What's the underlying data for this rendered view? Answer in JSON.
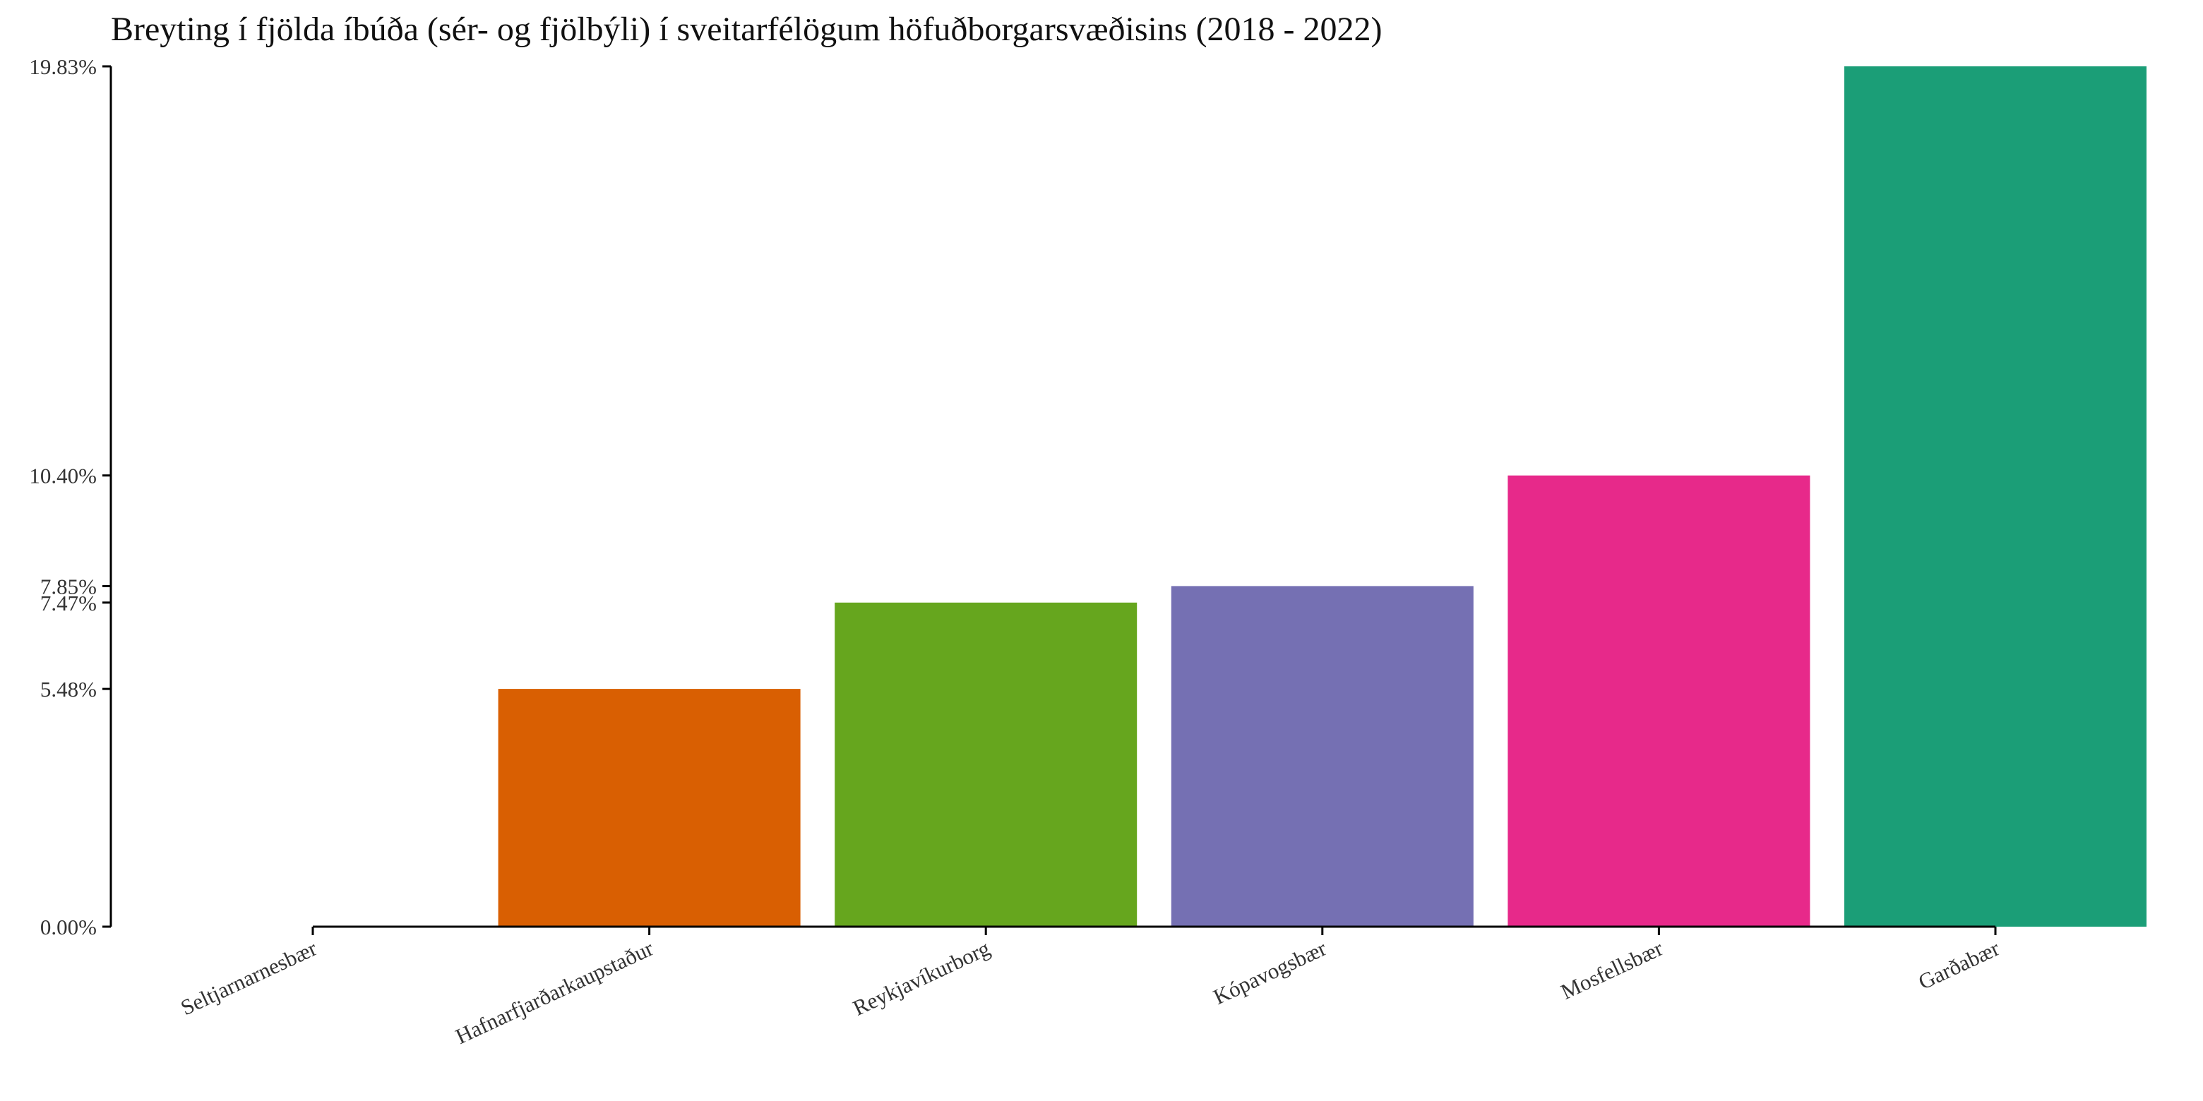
{
  "chart_data": {
    "type": "bar",
    "title": "Breyting í fjölda íbúða (sér- og fjölbýli) í sveitarfélögum höfuðborgarsvæðisins (2018 - 2022)",
    "xlabel": "",
    "ylabel": "",
    "categories": [
      "Seltjarnarnesbær",
      "Hafnarfjarðarkaupstaður",
      "Reykjavíkurborg",
      "Kópavogsbær",
      "Mosfellsbær",
      "Garðabær"
    ],
    "values": [
      0.0,
      5.48,
      7.47,
      7.85,
      10.4,
      19.83
    ],
    "colors": [
      "#1b9e77",
      "#d95f02",
      "#66a61e",
      "#7570b3",
      "#e7298a",
      "#1b9e77"
    ],
    "y_ticks": [
      0.0,
      5.48,
      7.47,
      7.85,
      10.4,
      19.83
    ],
    "y_tick_labels": [
      "0.00%",
      "5.48%",
      "7.47%",
      "7.85%",
      "10.40%",
      "19.83%"
    ],
    "ylim": [
      0,
      19.83
    ],
    "grid": false,
    "legend": "none"
  }
}
